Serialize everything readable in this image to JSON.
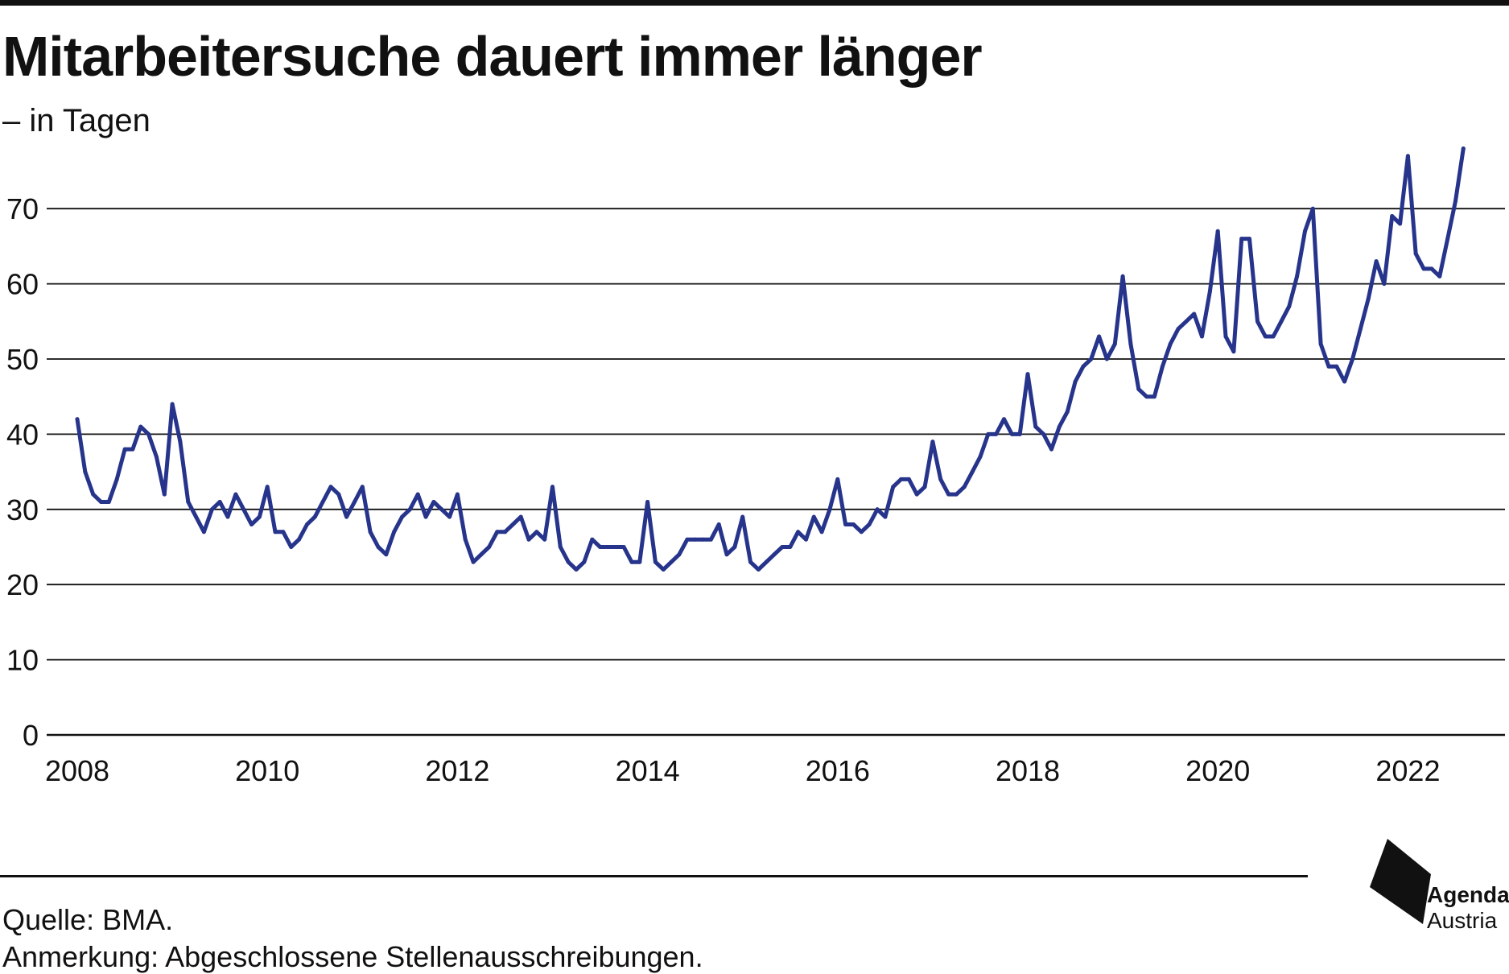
{
  "header": {
    "title": "Mitarbeitersuche dauert immer länger",
    "subtitle": "– in Tagen"
  },
  "footer": {
    "source": "Quelle: BMA.",
    "note": "Anmerkung: Abgeschlossene Stellenausschreibungen."
  },
  "logo": {
    "line1": "Agenda",
    "line2": "Austria"
  },
  "colors": {
    "line": "#27348b",
    "grid": "#111111",
    "text": "#111111"
  },
  "chart_data": {
    "type": "line",
    "title": "Mitarbeitersuche dauert immer länger",
    "subtitle": "– in Tagen",
    "xlabel": "",
    "ylabel": "",
    "xlim": [
      2008,
      2022.75
    ],
    "ylim": [
      0,
      78
    ],
    "yticks": [
      0,
      10,
      20,
      30,
      40,
      50,
      60,
      70
    ],
    "xticks": [
      "2008",
      "2010",
      "2012",
      "2014",
      "2016",
      "2018",
      "2020",
      "2022"
    ],
    "grid": true,
    "legend": "none",
    "series": [
      {
        "x": [
          2008.0,
          2008.083,
          2008.167,
          2008.25,
          2008.333,
          2008.417,
          2008.5,
          2008.583,
          2008.667,
          2008.75,
          2008.833,
          2008.917,
          2009.0,
          2009.083,
          2009.167,
          2009.25,
          2009.333,
          2009.417,
          2009.5,
          2009.583,
          2009.667,
          2009.75,
          2009.833,
          2009.917,
          2010.0,
          2010.083,
          2010.167,
          2010.25,
          2010.333,
          2010.417,
          2010.5,
          2010.583,
          2010.667,
          2010.75,
          2010.833,
          2010.917,
          2011.0,
          2011.083,
          2011.167,
          2011.25,
          2011.333,
          2011.417,
          2011.5,
          2011.583,
          2011.667,
          2011.75,
          2011.833,
          2011.917,
          2012.0,
          2012.083,
          2012.167,
          2012.25,
          2012.333,
          2012.417,
          2012.5,
          2012.583,
          2012.667,
          2012.75,
          2012.833,
          2012.917,
          2013.0,
          2013.083,
          2013.167,
          2013.25,
          2013.333,
          2013.417,
          2013.5,
          2013.583,
          2013.667,
          2013.75,
          2013.833,
          2013.917,
          2014.0,
          2014.083,
          2014.167,
          2014.25,
          2014.333,
          2014.417,
          2014.5,
          2014.583,
          2014.667,
          2014.75,
          2014.833,
          2014.917,
          2015.0,
          2015.083,
          2015.167,
          2015.25,
          2015.333,
          2015.417,
          2015.5,
          2015.583,
          2015.667,
          2015.75,
          2015.833,
          2015.917,
          2016.0,
          2016.083,
          2016.167,
          2016.25,
          2016.333,
          2016.417,
          2016.5,
          2016.583,
          2016.667,
          2016.75,
          2016.833,
          2016.917,
          2017.0,
          2017.083,
          2017.167,
          2017.25,
          2017.333,
          2017.417,
          2017.5,
          2017.583,
          2017.667,
          2017.75,
          2017.833,
          2017.917,
          2018.0,
          2018.083,
          2018.167,
          2018.25,
          2018.333,
          2018.417,
          2018.5,
          2018.583,
          2018.667,
          2018.75,
          2018.833,
          2018.917,
          2019.0,
          2019.083,
          2019.167,
          2019.25,
          2019.333,
          2019.417,
          2019.5,
          2019.583,
          2019.667,
          2019.75,
          2019.833,
          2019.917,
          2020.0,
          2020.083,
          2020.167,
          2020.25,
          2020.333,
          2020.417,
          2020.5,
          2020.583,
          2020.667,
          2020.75,
          2020.833,
          2020.917,
          2021.0,
          2021.083,
          2021.167,
          2021.25,
          2021.333,
          2021.417,
          2021.5,
          2021.583,
          2021.667,
          2021.75,
          2021.833,
          2021.917,
          2022.0,
          2022.083,
          2022.167,
          2022.25,
          2022.333,
          2022.417,
          2022.5,
          2022.583
        ],
        "values": [
          42,
          35,
          32,
          31,
          31,
          34,
          38,
          38,
          41,
          40,
          37,
          32,
          44,
          39,
          31,
          29,
          27,
          30,
          31,
          29,
          32,
          30,
          28,
          29,
          33,
          27,
          27,
          25,
          26,
          28,
          29,
          31,
          33,
          32,
          29,
          31,
          33,
          27,
          25,
          24,
          27,
          29,
          30,
          32,
          29,
          31,
          30,
          29,
          32,
          26,
          23,
          24,
          25,
          27,
          27,
          28,
          29,
          26,
          27,
          26,
          33,
          25,
          23,
          22,
          23,
          26,
          25,
          25,
          25,
          25,
          23,
          23,
          31,
          23,
          22,
          23,
          24,
          26,
          26,
          26,
          26,
          28,
          24,
          25,
          29,
          23,
          22,
          23,
          24,
          25,
          25,
          27,
          26,
          29,
          27,
          30,
          34,
          28,
          28,
          27,
          28,
          30,
          29,
          33,
          34,
          34,
          32,
          33,
          39,
          34,
          32,
          32,
          33,
          35,
          37,
          40,
          40,
          42,
          40,
          40,
          48,
          41,
          40,
          38,
          41,
          43,
          47,
          49,
          50,
          53,
          50,
          52,
          61,
          52,
          46,
          45,
          45,
          49,
          52,
          54,
          55,
          56,
          53,
          59,
          67,
          53,
          51,
          66,
          66,
          55,
          53,
          53,
          55,
          57,
          61,
          67,
          70,
          52,
          49,
          49,
          47,
          50,
          54,
          58,
          63,
          60,
          69,
          68,
          77,
          64,
          62,
          62,
          61,
          66,
          71,
          78
        ]
      }
    ]
  }
}
